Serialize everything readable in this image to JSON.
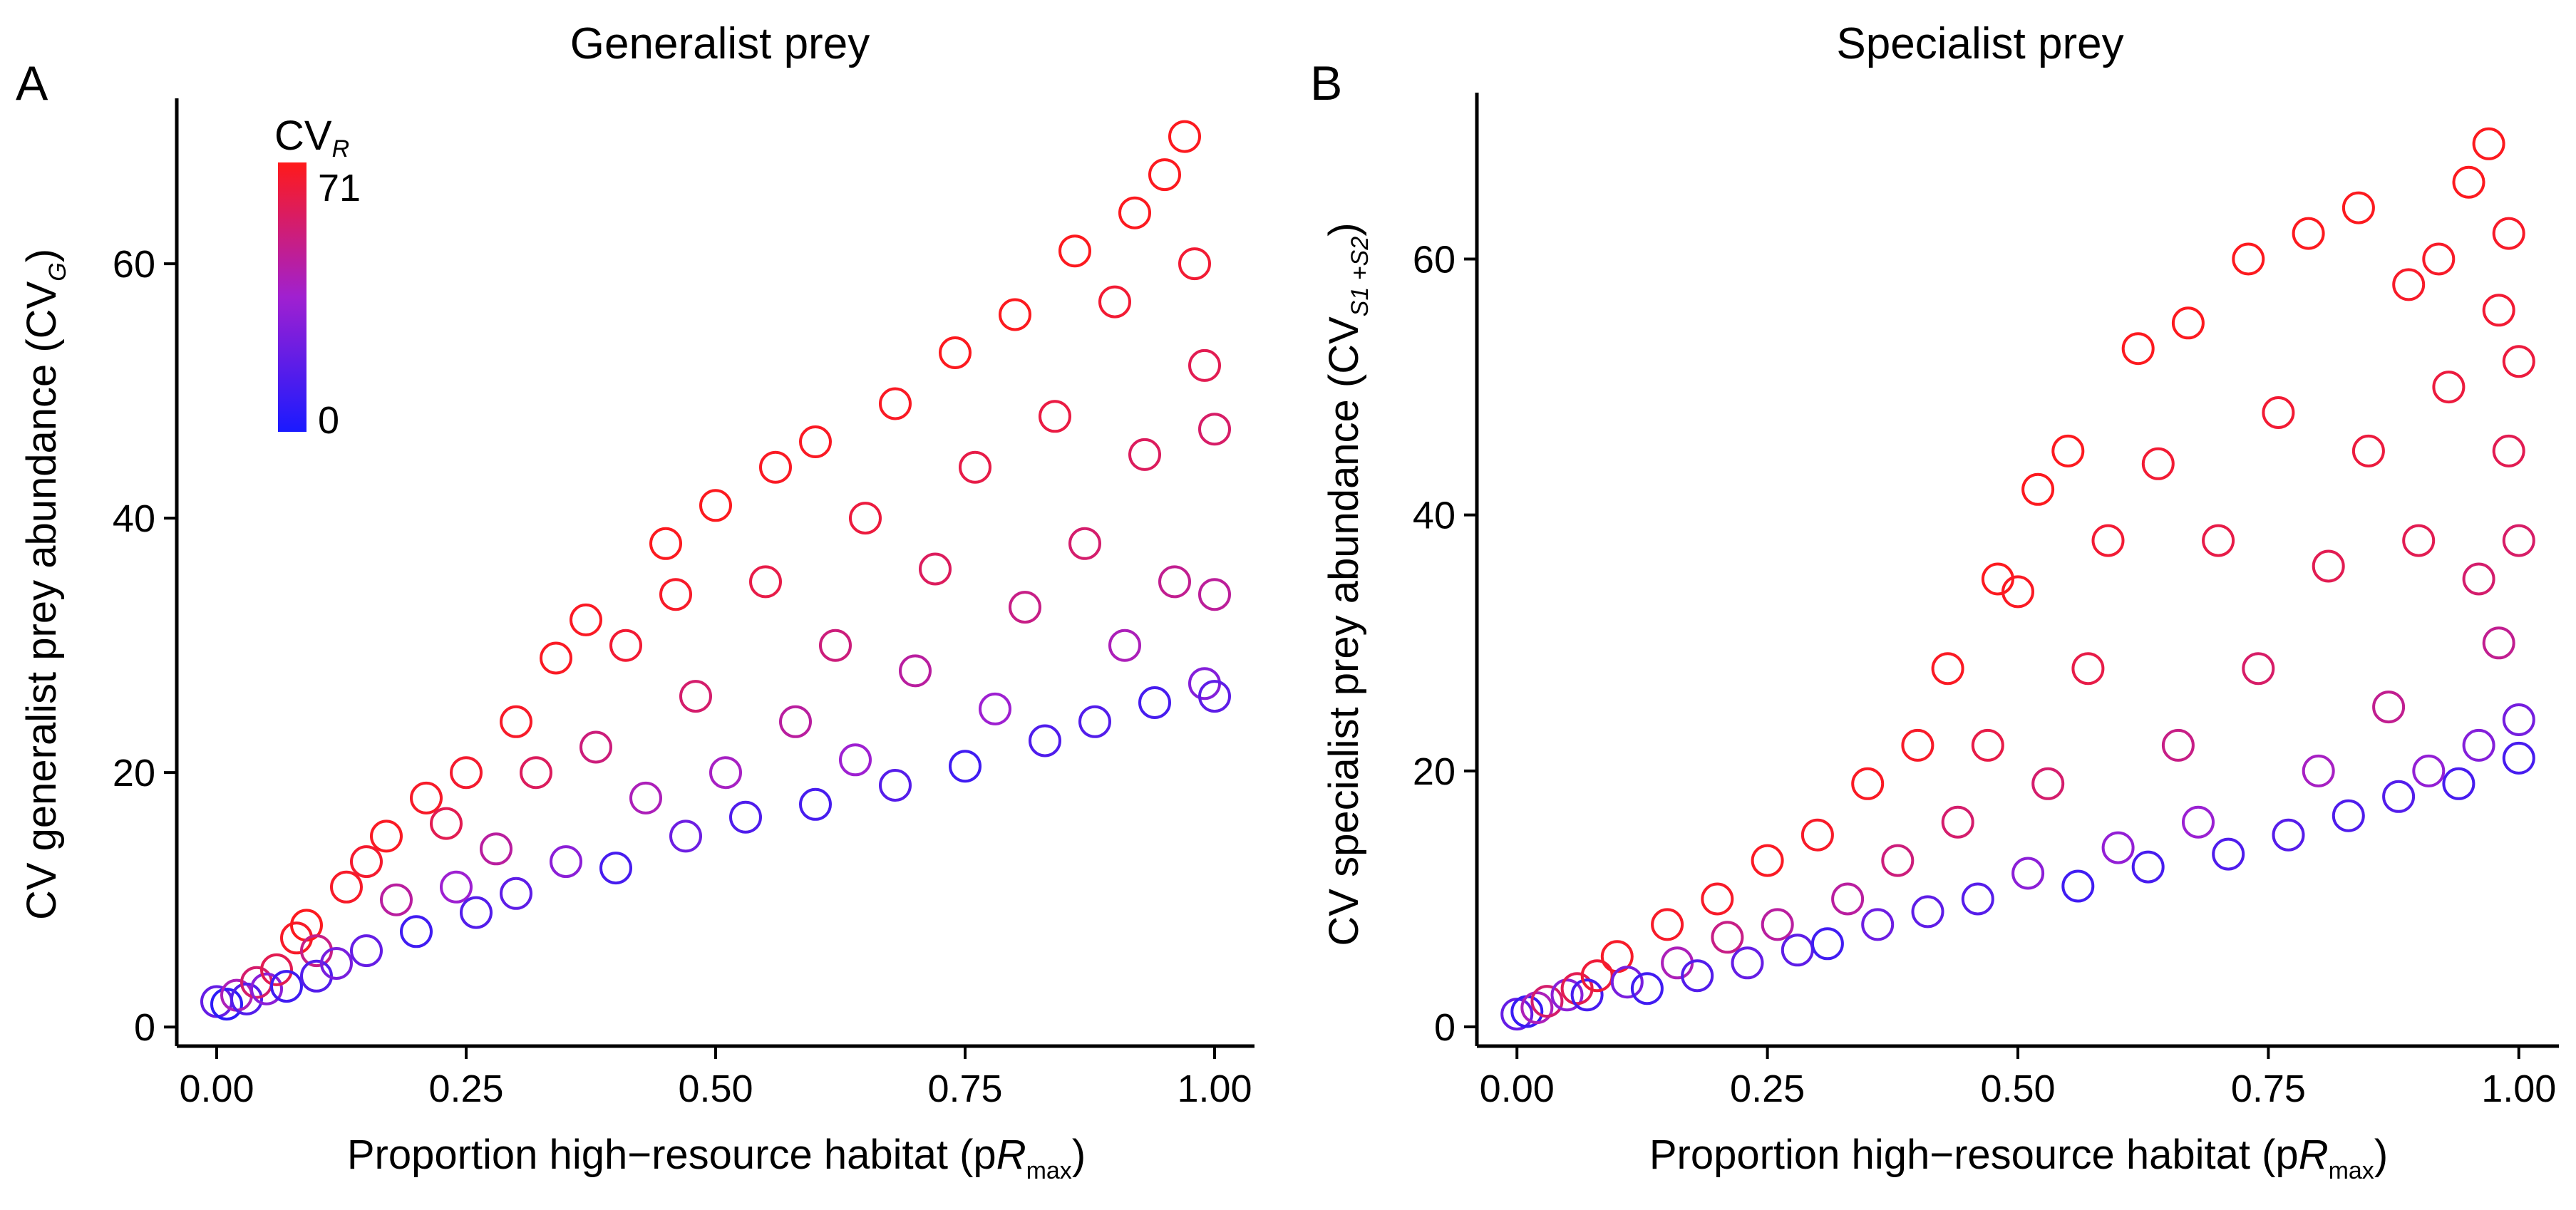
{
  "figure": {
    "colorbar": {
      "title_main": "CV",
      "title_sub": "R",
      "max_label": "71",
      "min_label": "0",
      "min": 0,
      "max": 71,
      "low_color": "#1a1aff",
      "mid_color": "#a020d0",
      "high_color": "#ff1a1a"
    }
  },
  "chart_data": [
    {
      "type": "scatter",
      "panel": "A",
      "title": "Generalist prey",
      "xlabel_main": "Proportion high−resource habitat (p",
      "xlabel_italic": "R",
      "xlabel_sub": "max",
      "xlabel_end": ")",
      "ylabel_main": "CV generalist prey abundance (CV",
      "ylabel_sub": "G",
      "ylabel_end": ")",
      "xlim": [
        -0.04,
        1.04
      ],
      "ylim": [
        -1.5,
        73
      ],
      "xticks": [
        0,
        0.25,
        0.5,
        0.75,
        1
      ],
      "xtick_labels": [
        "0.00",
        "0.25",
        "0.50",
        "0.75",
        "1.00"
      ],
      "yticks": [
        0,
        20,
        40,
        60
      ],
      "ytick_labels": [
        "0",
        "20",
        "40",
        "60"
      ],
      "grid": false,
      "marker": "open-circle",
      "color_by": "CV_R",
      "points": [
        {
          "x": 0.0,
          "y": 2,
          "c": 20
        },
        {
          "x": 0.01,
          "y": 1.8,
          "c": 5
        },
        {
          "x": 0.02,
          "y": 2.5,
          "c": 40
        },
        {
          "x": 0.03,
          "y": 2.2,
          "c": 15
        },
        {
          "x": 0.04,
          "y": 3.5,
          "c": 55
        },
        {
          "x": 0.05,
          "y": 3,
          "c": 30
        },
        {
          "x": 0.06,
          "y": 4.5,
          "c": 60
        },
        {
          "x": 0.07,
          "y": 3.2,
          "c": 10
        },
        {
          "x": 0.08,
          "y": 7,
          "c": 68
        },
        {
          "x": 0.09,
          "y": 8,
          "c": 70
        },
        {
          "x": 0.1,
          "y": 6,
          "c": 50
        },
        {
          "x": 0.1,
          "y": 4,
          "c": 15
        },
        {
          "x": 0.12,
          "y": 5,
          "c": 25
        },
        {
          "x": 0.13,
          "y": 11,
          "c": 68
        },
        {
          "x": 0.15,
          "y": 13,
          "c": 67
        },
        {
          "x": 0.15,
          "y": 6,
          "c": 20
        },
        {
          "x": 0.17,
          "y": 15,
          "c": 69
        },
        {
          "x": 0.18,
          "y": 10,
          "c": 45
        },
        {
          "x": 0.2,
          "y": 7.5,
          "c": 10
        },
        {
          "x": 0.21,
          "y": 18,
          "c": 68
        },
        {
          "x": 0.23,
          "y": 16,
          "c": 60
        },
        {
          "x": 0.24,
          "y": 11,
          "c": 35
        },
        {
          "x": 0.25,
          "y": 20,
          "c": 67
        },
        {
          "x": 0.26,
          "y": 9,
          "c": 15
        },
        {
          "x": 0.28,
          "y": 14,
          "c": 45
        },
        {
          "x": 0.3,
          "y": 24,
          "c": 68
        },
        {
          "x": 0.3,
          "y": 10.5,
          "c": 18
        },
        {
          "x": 0.32,
          "y": 20,
          "c": 58
        },
        {
          "x": 0.34,
          "y": 29,
          "c": 69
        },
        {
          "x": 0.35,
          "y": 13,
          "c": 30
        },
        {
          "x": 0.37,
          "y": 32,
          "c": 69
        },
        {
          "x": 0.38,
          "y": 22,
          "c": 52
        },
        {
          "x": 0.4,
          "y": 12.5,
          "c": 12
        },
        {
          "x": 0.41,
          "y": 30,
          "c": 66
        },
        {
          "x": 0.43,
          "y": 18,
          "c": 40
        },
        {
          "x": 0.45,
          "y": 38,
          "c": 70
        },
        {
          "x": 0.46,
          "y": 34,
          "c": 68
        },
        {
          "x": 0.47,
          "y": 15,
          "c": 22
        },
        {
          "x": 0.48,
          "y": 26,
          "c": 55
        },
        {
          "x": 0.5,
          "y": 41,
          "c": 70
        },
        {
          "x": 0.51,
          "y": 20,
          "c": 38
        },
        {
          "x": 0.53,
          "y": 16.5,
          "c": 14
        },
        {
          "x": 0.55,
          "y": 35,
          "c": 62
        },
        {
          "x": 0.56,
          "y": 44,
          "c": 69
        },
        {
          "x": 0.58,
          "y": 24,
          "c": 45
        },
        {
          "x": 0.6,
          "y": 17.5,
          "c": 12
        },
        {
          "x": 0.6,
          "y": 46,
          "c": 69
        },
        {
          "x": 0.62,
          "y": 30,
          "c": 52
        },
        {
          "x": 0.64,
          "y": 21,
          "c": 35
        },
        {
          "x": 0.65,
          "y": 40,
          "c": 64
        },
        {
          "x": 0.68,
          "y": 49,
          "c": 69
        },
        {
          "x": 0.68,
          "y": 19,
          "c": 16
        },
        {
          "x": 0.7,
          "y": 28,
          "c": 45
        },
        {
          "x": 0.72,
          "y": 36,
          "c": 58
        },
        {
          "x": 0.74,
          "y": 53,
          "c": 70
        },
        {
          "x": 0.75,
          "y": 20.5,
          "c": 10
        },
        {
          "x": 0.76,
          "y": 44,
          "c": 62
        },
        {
          "x": 0.78,
          "y": 25,
          "c": 35
        },
        {
          "x": 0.8,
          "y": 56,
          "c": 70
        },
        {
          "x": 0.81,
          "y": 33,
          "c": 50
        },
        {
          "x": 0.83,
          "y": 22.5,
          "c": 14
        },
        {
          "x": 0.84,
          "y": 48,
          "c": 63
        },
        {
          "x": 0.86,
          "y": 61,
          "c": 70
        },
        {
          "x": 0.87,
          "y": 38,
          "c": 55
        },
        {
          "x": 0.88,
          "y": 24,
          "c": 15
        },
        {
          "x": 0.9,
          "y": 57,
          "c": 66
        },
        {
          "x": 0.91,
          "y": 30,
          "c": 40
        },
        {
          "x": 0.92,
          "y": 64,
          "c": 70
        },
        {
          "x": 0.93,
          "y": 45,
          "c": 58
        },
        {
          "x": 0.94,
          "y": 25.5,
          "c": 12
        },
        {
          "x": 0.95,
          "y": 67,
          "c": 70
        },
        {
          "x": 0.96,
          "y": 35,
          "c": 48
        },
        {
          "x": 0.97,
          "y": 70,
          "c": 70
        },
        {
          "x": 0.98,
          "y": 60,
          "c": 66
        },
        {
          "x": 0.99,
          "y": 52,
          "c": 60
        },
        {
          "x": 0.99,
          "y": 27,
          "c": 28
        },
        {
          "x": 1.0,
          "y": 47,
          "c": 56
        },
        {
          "x": 1.0,
          "y": 34,
          "c": 46
        },
        {
          "x": 1.0,
          "y": 26,
          "c": 18
        }
      ]
    },
    {
      "type": "scatter",
      "panel": "B",
      "title": "Specialist prey",
      "xlabel_main": "Proportion high−resource habitat (p",
      "xlabel_italic": "R",
      "xlabel_sub": "max",
      "xlabel_end": ")",
      "ylabel_main": "CV specialist prey abundance (CV",
      "ylabel_sub": "S1 +S2",
      "ylabel_end": ")",
      "xlim": [
        -0.04,
        1.04
      ],
      "ylim": [
        -1.5,
        73
      ],
      "xticks": [
        0,
        0.25,
        0.5,
        0.75,
        1
      ],
      "xtick_labels": [
        "0.00",
        "0.25",
        "0.50",
        "0.75",
        "1.00"
      ],
      "yticks": [
        0,
        20,
        40,
        60
      ],
      "ytick_labels": [
        "0",
        "20",
        "40",
        "60"
      ],
      "grid": false,
      "marker": "open-circle",
      "color_by": "CV_R",
      "points": [
        {
          "x": 0.0,
          "y": 1,
          "c": 20
        },
        {
          "x": 0.01,
          "y": 1.2,
          "c": 8
        },
        {
          "x": 0.02,
          "y": 1.5,
          "c": 40
        },
        {
          "x": 0.03,
          "y": 2,
          "c": 55
        },
        {
          "x": 0.05,
          "y": 2.5,
          "c": 30
        },
        {
          "x": 0.06,
          "y": 3,
          "c": 60
        },
        {
          "x": 0.07,
          "y": 2.5,
          "c": 12
        },
        {
          "x": 0.08,
          "y": 4,
          "c": 65
        },
        {
          "x": 0.1,
          "y": 5.5,
          "c": 68
        },
        {
          "x": 0.11,
          "y": 3.5,
          "c": 25
        },
        {
          "x": 0.13,
          "y": 3,
          "c": 10
        },
        {
          "x": 0.15,
          "y": 8,
          "c": 68
        },
        {
          "x": 0.16,
          "y": 5,
          "c": 40
        },
        {
          "x": 0.18,
          "y": 4,
          "c": 15
        },
        {
          "x": 0.2,
          "y": 10,
          "c": 68
        },
        {
          "x": 0.21,
          "y": 7,
          "c": 50
        },
        {
          "x": 0.23,
          "y": 5,
          "c": 20
        },
        {
          "x": 0.25,
          "y": 13,
          "c": 69
        },
        {
          "x": 0.26,
          "y": 8,
          "c": 45
        },
        {
          "x": 0.28,
          "y": 6,
          "c": 18
        },
        {
          "x": 0.3,
          "y": 15,
          "c": 68
        },
        {
          "x": 0.31,
          "y": 6.5,
          "c": 10
        },
        {
          "x": 0.33,
          "y": 10,
          "c": 45
        },
        {
          "x": 0.35,
          "y": 19,
          "c": 69
        },
        {
          "x": 0.36,
          "y": 8,
          "c": 22
        },
        {
          "x": 0.38,
          "y": 13,
          "c": 52
        },
        {
          "x": 0.4,
          "y": 22,
          "c": 68
        },
        {
          "x": 0.41,
          "y": 9,
          "c": 18
        },
        {
          "x": 0.43,
          "y": 28,
          "c": 69
        },
        {
          "x": 0.44,
          "y": 16,
          "c": 55
        },
        {
          "x": 0.46,
          "y": 10,
          "c": 16
        },
        {
          "x": 0.47,
          "y": 22,
          "c": 62
        },
        {
          "x": 0.48,
          "y": 35,
          "c": 70
        },
        {
          "x": 0.5,
          "y": 34,
          "c": 69
        },
        {
          "x": 0.51,
          "y": 12,
          "c": 30
        },
        {
          "x": 0.52,
          "y": 42,
          "c": 70
        },
        {
          "x": 0.53,
          "y": 19,
          "c": 55
        },
        {
          "x": 0.55,
          "y": 45,
          "c": 70
        },
        {
          "x": 0.56,
          "y": 11,
          "c": 10
        },
        {
          "x": 0.57,
          "y": 28,
          "c": 62
        },
        {
          "x": 0.59,
          "y": 38,
          "c": 66
        },
        {
          "x": 0.6,
          "y": 14,
          "c": 32
        },
        {
          "x": 0.62,
          "y": 53,
          "c": 70
        },
        {
          "x": 0.63,
          "y": 12.5,
          "c": 12
        },
        {
          "x": 0.64,
          "y": 44,
          "c": 66
        },
        {
          "x": 0.66,
          "y": 22,
          "c": 50
        },
        {
          "x": 0.67,
          "y": 55,
          "c": 70
        },
        {
          "x": 0.68,
          "y": 16,
          "c": 34
        },
        {
          "x": 0.7,
          "y": 38,
          "c": 62
        },
        {
          "x": 0.71,
          "y": 13.5,
          "c": 14
        },
        {
          "x": 0.73,
          "y": 60,
          "c": 70
        },
        {
          "x": 0.74,
          "y": 28,
          "c": 56
        },
        {
          "x": 0.76,
          "y": 48,
          "c": 66
        },
        {
          "x": 0.77,
          "y": 15,
          "c": 16
        },
        {
          "x": 0.79,
          "y": 62,
          "c": 70
        },
        {
          "x": 0.8,
          "y": 20,
          "c": 38
        },
        {
          "x": 0.81,
          "y": 36,
          "c": 60
        },
        {
          "x": 0.83,
          "y": 16.5,
          "c": 14
        },
        {
          "x": 0.84,
          "y": 64,
          "c": 70
        },
        {
          "x": 0.85,
          "y": 45,
          "c": 64
        },
        {
          "x": 0.87,
          "y": 25,
          "c": 48
        },
        {
          "x": 0.88,
          "y": 18,
          "c": 15
        },
        {
          "x": 0.89,
          "y": 58,
          "c": 68
        },
        {
          "x": 0.9,
          "y": 38,
          "c": 60
        },
        {
          "x": 0.91,
          "y": 20,
          "c": 32
        },
        {
          "x": 0.92,
          "y": 60,
          "c": 68
        },
        {
          "x": 0.93,
          "y": 50,
          "c": 64
        },
        {
          "x": 0.94,
          "y": 19,
          "c": 12
        },
        {
          "x": 0.95,
          "y": 66,
          "c": 70
        },
        {
          "x": 0.96,
          "y": 35,
          "c": 55
        },
        {
          "x": 0.96,
          "y": 22,
          "c": 28
        },
        {
          "x": 0.97,
          "y": 69,
          "c": 70
        },
        {
          "x": 0.98,
          "y": 56,
          "c": 66
        },
        {
          "x": 0.98,
          "y": 30,
          "c": 48
        },
        {
          "x": 0.99,
          "y": 62,
          "c": 68
        },
        {
          "x": 0.99,
          "y": 45,
          "c": 60
        },
        {
          "x": 1.0,
          "y": 52,
          "c": 64
        },
        {
          "x": 1.0,
          "y": 38,
          "c": 56
        },
        {
          "x": 1.0,
          "y": 24,
          "c": 24
        },
        {
          "x": 1.0,
          "y": 21,
          "c": 12
        }
      ]
    }
  ]
}
